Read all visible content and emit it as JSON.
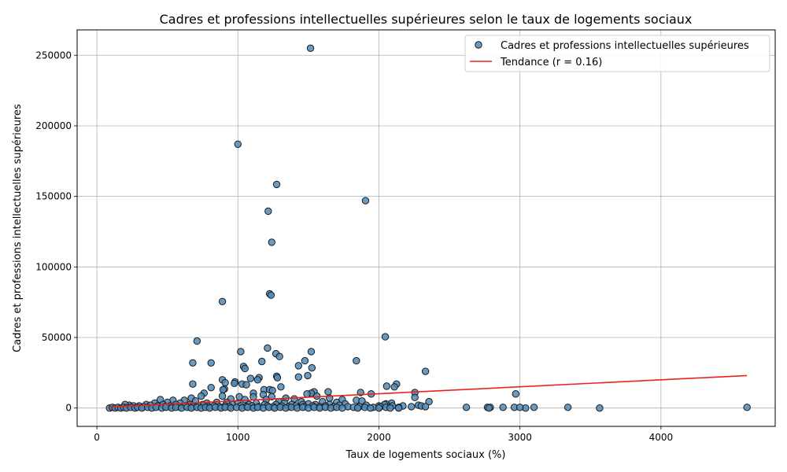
{
  "chart_data": {
    "type": "scatter",
    "title": "Cadres et professions intellectuelles supérieures selon le taux de logements sociaux",
    "xlabel": "Taux de logements sociaux (%)",
    "ylabel": "Cadres et professions intellectuelles supérieures",
    "xlim": [
      -140,
      4810
    ],
    "ylim": [
      -13000,
      268000
    ],
    "xticks": [
      0,
      1000,
      2000,
      3000,
      4000
    ],
    "yticks": [
      0,
      50000,
      100000,
      150000,
      200000,
      250000
    ],
    "grid": true,
    "legend_position": "top-right",
    "colors": {
      "scatter_fill": "#4f89b9",
      "scatter_edge": "#1a1a1a",
      "trend": "#e8231d"
    },
    "series": [
      {
        "name": "Cadres et professions intellectuelles supérieures",
        "kind": "scatter",
        "points": [
          [
            1515,
            255000
          ],
          [
            1000,
            187000
          ],
          [
            1275,
            158500
          ],
          [
            1905,
            147000
          ],
          [
            1215,
            139500
          ],
          [
            1240,
            117500
          ],
          [
            1225,
            81000
          ],
          [
            1235,
            80000
          ],
          [
            890,
            75500
          ],
          [
            710,
            47500
          ],
          [
            2045,
            50500
          ],
          [
            1210,
            42500
          ],
          [
            1020,
            40000
          ],
          [
            1520,
            40000
          ],
          [
            1270,
            38500
          ],
          [
            1295,
            36500
          ],
          [
            1840,
            33500
          ],
          [
            1170,
            33000
          ],
          [
            1475,
            33500
          ],
          [
            680,
            32000
          ],
          [
            810,
            32000
          ],
          [
            1430,
            30000
          ],
          [
            1040,
            29500
          ],
          [
            1050,
            28000
          ],
          [
            1525,
            28500
          ],
          [
            2330,
            26000
          ],
          [
            1495,
            23000
          ],
          [
            1275,
            22500
          ],
          [
            1280,
            21500
          ],
          [
            1430,
            22000
          ],
          [
            1150,
            21500
          ],
          [
            1090,
            21000
          ],
          [
            1140,
            20000
          ],
          [
            890,
            20000
          ],
          [
            980,
            18500
          ],
          [
            910,
            18000
          ],
          [
            975,
            17500
          ],
          [
            680,
            17000
          ],
          [
            1030,
            17000
          ],
          [
            1060,
            16500
          ],
          [
            2125,
            17000
          ],
          [
            2055,
            15500
          ],
          [
            2110,
            15000
          ],
          [
            1305,
            15000
          ],
          [
            810,
            14500
          ],
          [
            905,
            13500
          ],
          [
            895,
            13000
          ],
          [
            1185,
            13000
          ],
          [
            1225,
            13000
          ],
          [
            1245,
            12500
          ],
          [
            1540,
            11500
          ],
          [
            1640,
            11500
          ],
          [
            1870,
            11000
          ],
          [
            2255,
            11000
          ],
          [
            1520,
            10500
          ],
          [
            760,
            10500
          ],
          [
            1110,
            10500
          ],
          [
            1490,
            10000
          ],
          [
            1945,
            10000
          ],
          [
            2970,
            10000
          ],
          [
            1180,
            9500
          ],
          [
            740,
            8500
          ],
          [
            890,
            8500
          ],
          [
            1010,
            8000
          ],
          [
            1110,
            8000
          ],
          [
            1240,
            8000
          ],
          [
            1560,
            8500
          ],
          [
            2255,
            7500
          ],
          [
            1340,
            7000
          ],
          [
            1650,
            7000
          ],
          [
            670,
            7000
          ],
          [
            950,
            6500
          ],
          [
            1050,
            6000
          ],
          [
            1200,
            6000
          ],
          [
            1400,
            6500
          ],
          [
            1740,
            6000
          ],
          [
            450,
            6000
          ],
          [
            540,
            5500
          ],
          [
            620,
            5500
          ],
          [
            700,
            5000
          ],
          [
            1840,
            5500
          ],
          [
            1880,
            5000
          ],
          [
            2355,
            4500
          ],
          [
            1290,
            4500
          ],
          [
            1450,
            4500
          ],
          [
            1600,
            4500
          ],
          [
            1700,
            4000
          ],
          [
            500,
            4000
          ],
          [
            850,
            4000
          ],
          [
            920,
            4000
          ],
          [
            410,
            3500
          ],
          [
            590,
            3500
          ],
          [
            780,
            3500
          ],
          [
            1000,
            3500
          ],
          [
            1130,
            3500
          ],
          [
            1330,
            3500
          ],
          [
            1500,
            3000
          ],
          [
            1760,
            3000
          ],
          [
            2090,
            3500
          ],
          [
            2050,
            3000
          ],
          [
            2170,
            1500
          ],
          [
            2280,
            2000
          ],
          [
            2300,
            1500
          ],
          [
            2330,
            1000
          ],
          [
            2620,
            500
          ],
          [
            350,
            2500
          ],
          [
            470,
            2500
          ],
          [
            560,
            2500
          ],
          [
            660,
            2500
          ],
          [
            750,
            2500
          ],
          [
            960,
            2500
          ],
          [
            1080,
            2500
          ],
          [
            1190,
            2500
          ],
          [
            1270,
            2500
          ],
          [
            1380,
            2500
          ],
          [
            1460,
            2500
          ],
          [
            1550,
            2500
          ],
          [
            1650,
            2500
          ],
          [
            1720,
            2000
          ],
          [
            1910,
            2000
          ],
          [
            2000,
            1500
          ],
          [
            2040,
            2500
          ],
          [
            2095,
            1500
          ],
          [
            2230,
            1000
          ],
          [
            230,
            2000
          ],
          [
            200,
            2500
          ],
          [
            260,
            1500
          ],
          [
            300,
            1500
          ],
          [
            330,
            1000
          ],
          [
            380,
            2000
          ],
          [
            430,
            1500
          ],
          [
            480,
            1000
          ],
          [
            520,
            1500
          ],
          [
            580,
            1000
          ],
          [
            630,
            1500
          ],
          [
            680,
            1000
          ],
          [
            720,
            1500
          ],
          [
            790,
            1000
          ],
          [
            830,
            1500
          ],
          [
            870,
            1000
          ],
          [
            910,
            1500
          ],
          [
            940,
            1000
          ],
          [
            1020,
            1500
          ],
          [
            1060,
            1000
          ],
          [
            1100,
            1500
          ],
          [
            1150,
            1000
          ],
          [
            1210,
            1500
          ],
          [
            1250,
            1000
          ],
          [
            1310,
            1500
          ],
          [
            1360,
            1000
          ],
          [
            1410,
            1500
          ],
          [
            1470,
            1000
          ],
          [
            1530,
            1500
          ],
          [
            1580,
            1000
          ],
          [
            1620,
            1500
          ],
          [
            1680,
            1000
          ],
          [
            1780,
            1000
          ],
          [
            1860,
            1000
          ],
          [
            1960,
            500
          ],
          [
            2010,
            1000
          ],
          [
            2140,
            500
          ],
          [
            2770,
            500
          ],
          [
            2790,
            500
          ],
          [
            2880,
            500
          ],
          [
            2960,
            500
          ],
          [
            3040,
            0
          ],
          [
            3100,
            500
          ],
          [
            3340,
            500
          ],
          [
            3565,
            0
          ],
          [
            4610,
            500
          ],
          [
            90,
            0
          ],
          [
            110,
            500
          ],
          [
            130,
            0
          ],
          [
            150,
            500
          ],
          [
            170,
            0
          ],
          [
            190,
            500
          ],
          [
            210,
            0
          ],
          [
            240,
            500
          ],
          [
            270,
            0
          ],
          [
            290,
            500
          ],
          [
            320,
            0
          ],
          [
            360,
            500
          ],
          [
            390,
            0
          ],
          [
            420,
            500
          ],
          [
            460,
            0
          ],
          [
            490,
            500
          ],
          [
            530,
            0
          ],
          [
            560,
            500
          ],
          [
            600,
            0
          ],
          [
            640,
            500
          ],
          [
            670,
            0
          ],
          [
            710,
            500
          ],
          [
            740,
            0
          ],
          [
            770,
            500
          ],
          [
            800,
            0
          ],
          [
            840,
            500
          ],
          [
            880,
            0
          ],
          [
            910,
            500
          ],
          [
            950,
            0
          ],
          [
            990,
            500
          ],
          [
            1030,
            0
          ],
          [
            1070,
            500
          ],
          [
            1110,
            0
          ],
          [
            1140,
            500
          ],
          [
            1180,
            0
          ],
          [
            1220,
            500
          ],
          [
            1260,
            0
          ],
          [
            1300,
            500
          ],
          [
            1340,
            0
          ],
          [
            1380,
            500
          ],
          [
            1420,
            0
          ],
          [
            1460,
            500
          ],
          [
            1500,
            0
          ],
          [
            1540,
            500
          ],
          [
            1580,
            0
          ],
          [
            1620,
            500
          ],
          [
            1660,
            0
          ],
          [
            1700,
            500
          ],
          [
            1740,
            0
          ],
          [
            1820,
            500
          ],
          [
            1850,
            0
          ],
          [
            1900,
            500
          ],
          [
            1940,
            0
          ],
          [
            2000,
            0
          ],
          [
            2050,
            500
          ],
          [
            2080,
            0
          ],
          [
            2140,
            0
          ],
          [
            2780,
            0
          ],
          [
            3000,
            500
          ]
        ]
      },
      {
        "name": "Tendance (r = 0.16)",
        "kind": "line",
        "x": [
          90,
          4610
        ],
        "y": [
          700,
          23000
        ]
      }
    ]
  }
}
